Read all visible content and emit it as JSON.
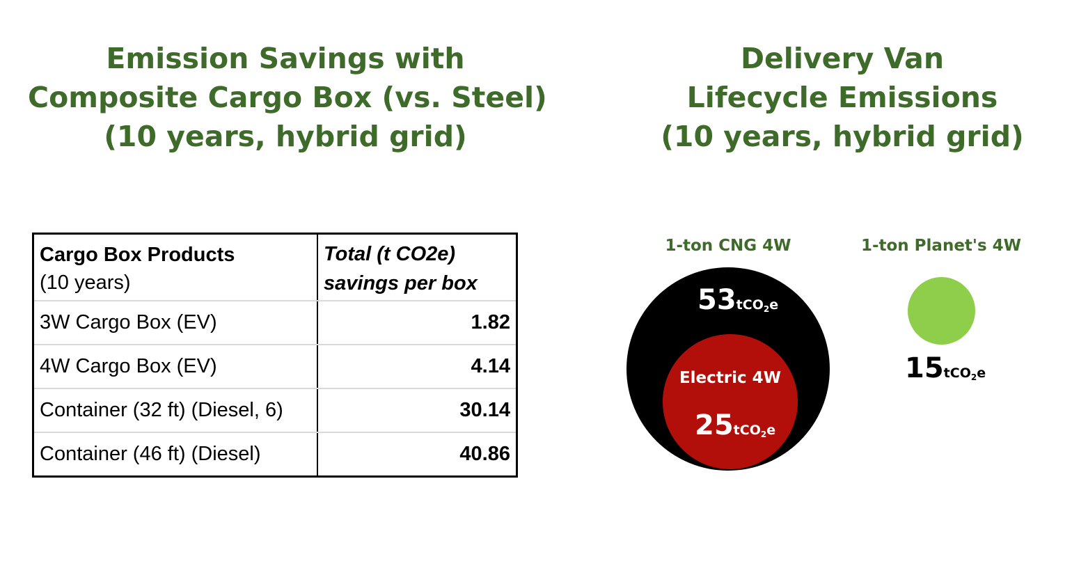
{
  "left_title": {
    "lines": [
      "Emission Savings with",
      "Composite Cargo Box (vs. Steel)",
      "(10 years, hybrid grid)"
    ]
  },
  "right_title": {
    "lines": [
      "Delivery Van",
      "Lifecycle Emissions",
      "(10 years, hybrid grid)"
    ]
  },
  "table": {
    "header": {
      "col1_bold": "Cargo Box Products",
      "col1_sub": "(10 years)",
      "col2_line1": "Total (t CO2e)",
      "col2_line2": "savings per box"
    },
    "rows": [
      {
        "product": "3W Cargo Box (EV)",
        "savings": "1.82"
      },
      {
        "product": "4W Cargo Box (EV)",
        "savings": "4.14"
      },
      {
        "product": "Container (32 ft) (Diesel, 6)",
        "savings": "30.14"
      },
      {
        "product": "Container (46 ft) (Diesel)",
        "savings": "40.86"
      }
    ]
  },
  "vans": {
    "cng": {
      "label": "1-ton CNG 4W",
      "value": "53",
      "unit_prefix": "tCO",
      "unit_sub": "2",
      "unit_suffix": "e",
      "color": "#000000"
    },
    "electric": {
      "label": "Electric 4W",
      "value": "25",
      "unit_prefix": "tCO",
      "unit_sub": "2",
      "unit_suffix": "e",
      "color": "#b30f0a"
    },
    "planet": {
      "label": "1-ton Planet's 4W",
      "value": "15",
      "unit_prefix": "tCO",
      "unit_sub": "2",
      "unit_suffix": "e",
      "color": "#8fce4a"
    }
  },
  "colors": {
    "title_green": "#3f6b2a"
  }
}
